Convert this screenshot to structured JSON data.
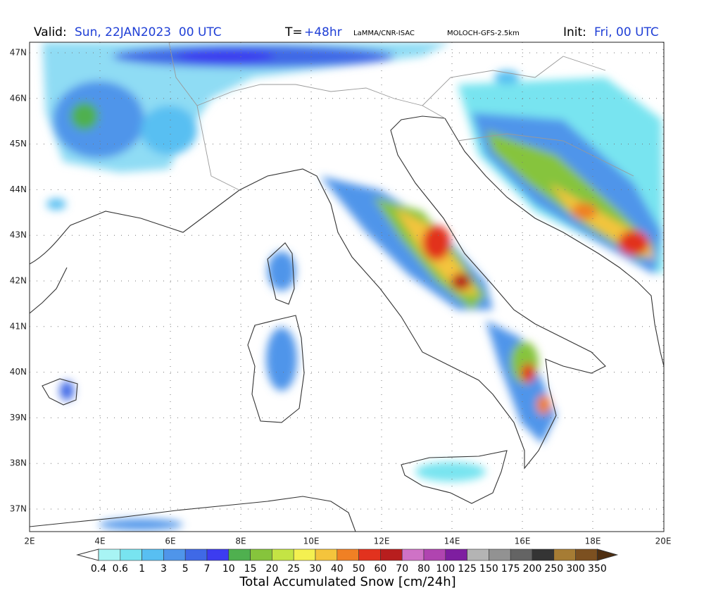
{
  "header": {
    "valid_label": "Valid:",
    "valid_value": "Sun, 22JAN2023  00 UTC",
    "t_label": "T=",
    "t_value": "+48hr",
    "source": "LaMMA/CNR-ISAC",
    "model": "MOLOCH-GFS-2.5km",
    "init_label": "Init:",
    "init_value": "Fri, 00 UTC"
  },
  "map": {
    "lat_labels": [
      "47N",
      "46N",
      "45N",
      "44N",
      "43N",
      "42N",
      "41N",
      "40N",
      "39N",
      "38N",
      "37N"
    ],
    "lon_labels": [
      "2E",
      "4E",
      "6E",
      "8E",
      "10E",
      "12E",
      "14E",
      "16E",
      "18E",
      "20E"
    ]
  },
  "colorbar": {
    "title": "Total Accumulated Snow [cm/24h]",
    "levels": [
      "0.4",
      "0.6",
      "1",
      "3",
      "5",
      "7",
      "10",
      "15",
      "20",
      "25",
      "30",
      "40",
      "50",
      "60",
      "70",
      "80",
      "100",
      "125",
      "150",
      "175",
      "200",
      "250",
      "300",
      "350"
    ],
    "colors": [
      "#a8f4f4",
      "#78e4f0",
      "#58bff2",
      "#4f95ea",
      "#3f69e6",
      "#3c3cf0",
      "#4fb04f",
      "#86c43c",
      "#c4e444",
      "#f4f050",
      "#f4c43c",
      "#f08024",
      "#e2321e",
      "#b81e1e",
      "#cf72c6",
      "#b044b0",
      "#7e1ea0",
      "#b4b4b4",
      "#929292",
      "#646464",
      "#343434",
      "#a67c34",
      "#7c5020"
    ],
    "under_color": "#ffffff",
    "over_color": "#4e2e10"
  }
}
